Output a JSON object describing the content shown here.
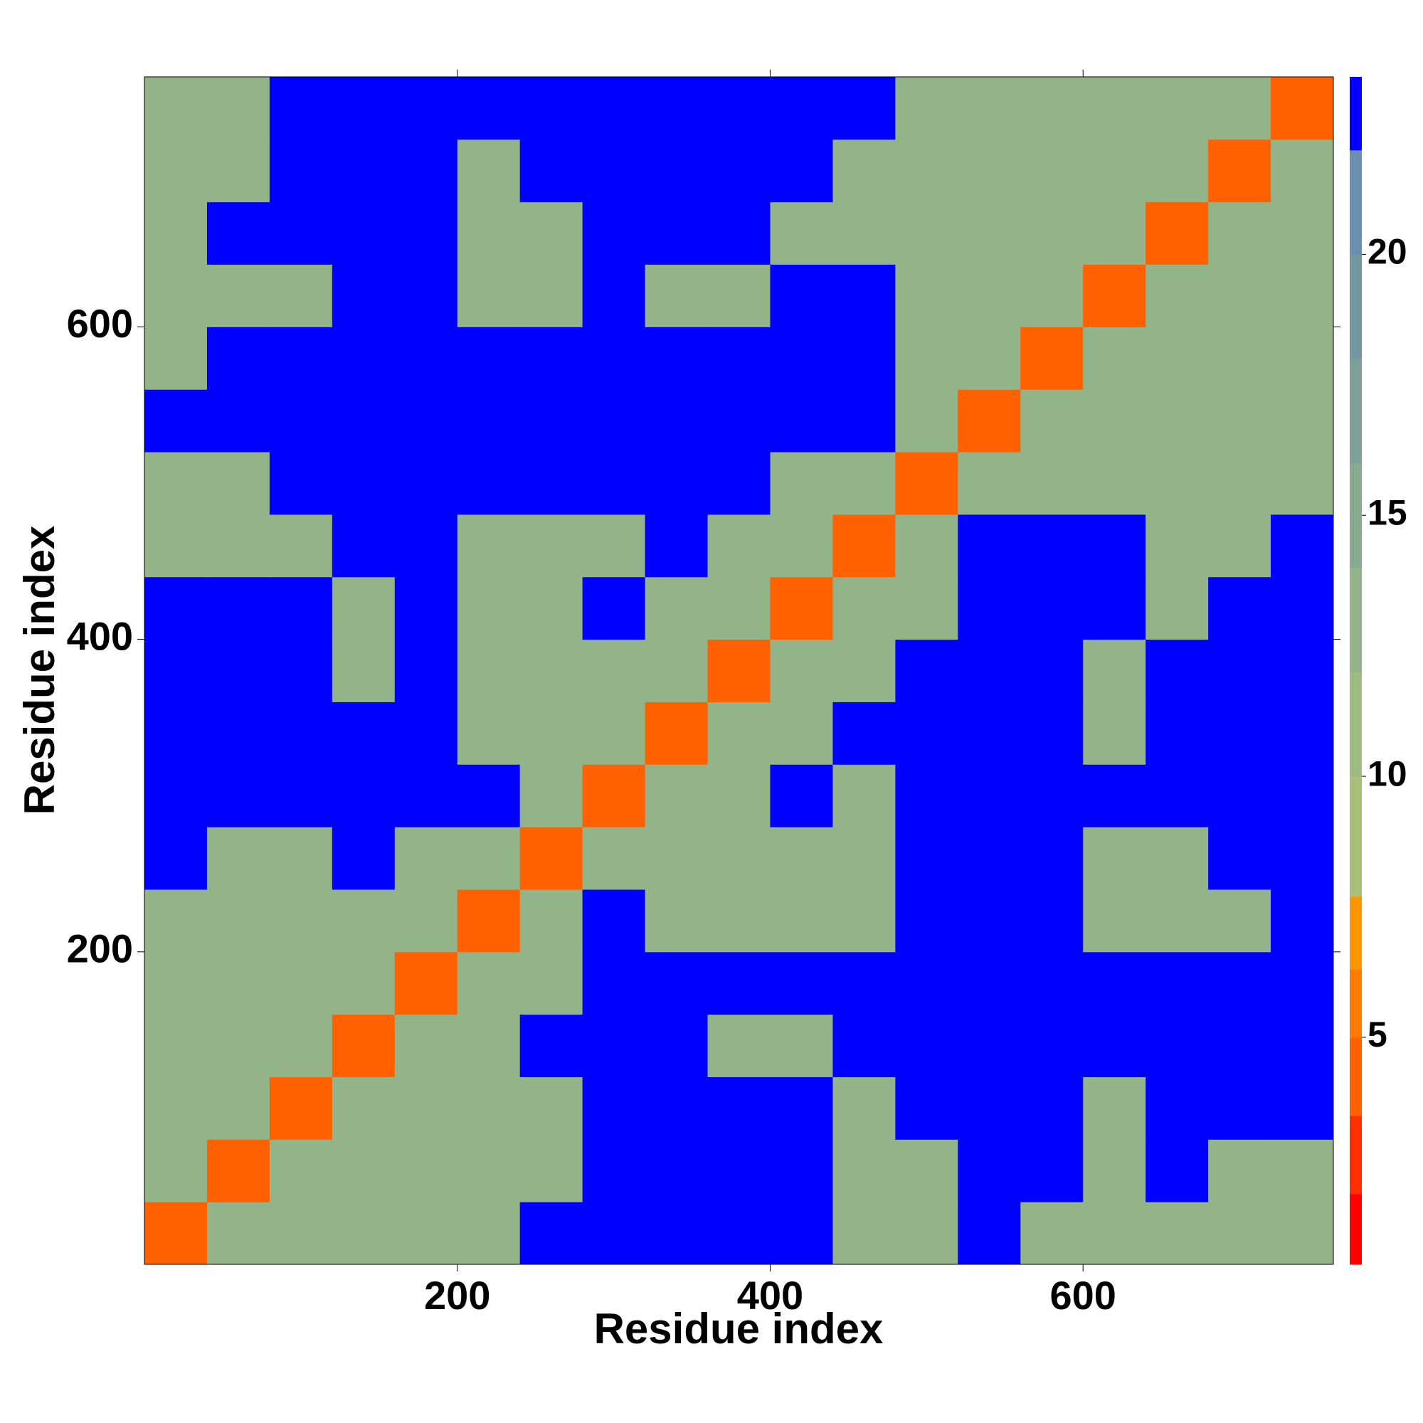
{
  "chart_data": {
    "type": "heatmap",
    "xlabel": "Residue index",
    "ylabel": "Residue index",
    "xlim": [
      0,
      760
    ],
    "ylim": [
      0,
      760
    ],
    "xticks": [
      200,
      400,
      600
    ],
    "yticks": [
      200,
      400,
      600
    ],
    "x_bins": [
      0,
      40,
      80,
      120,
      160,
      200,
      240,
      280,
      320,
      360,
      400,
      440,
      480,
      520,
      560,
      600,
      640,
      680,
      720,
      760
    ],
    "y_bins": [
      0,
      40,
      80,
      120,
      160,
      200,
      240,
      280,
      320,
      360,
      400,
      440,
      480,
      520,
      560,
      600,
      640,
      680,
      720,
      760
    ],
    "matrix": [
      [
        4,
        13,
        13,
        13,
        13,
        13,
        23,
        23,
        23,
        23,
        23,
        13,
        13,
        23,
        13,
        13,
        13,
        13,
        13
      ],
      [
        13,
        4,
        13,
        13,
        13,
        13,
        13,
        23,
        23,
        23,
        23,
        13,
        13,
        23,
        23,
        13,
        23,
        13,
        13
      ],
      [
        13,
        13,
        4,
        13,
        13,
        13,
        13,
        23,
        23,
        23,
        23,
        13,
        23,
        23,
        23,
        13,
        23,
        23,
        23
      ],
      [
        13,
        13,
        13,
        4,
        13,
        13,
        23,
        23,
        23,
        13,
        13,
        23,
        23,
        23,
        23,
        23,
        23,
        23,
        23
      ],
      [
        13,
        13,
        13,
        13,
        4,
        13,
        13,
        23,
        23,
        23,
        23,
        23,
        23,
        23,
        23,
        23,
        23,
        23,
        23
      ],
      [
        13,
        13,
        13,
        13,
        13,
        4,
        13,
        23,
        13,
        13,
        13,
        13,
        23,
        23,
        23,
        13,
        13,
        13,
        23
      ],
      [
        23,
        13,
        13,
        23,
        13,
        13,
        4,
        13,
        13,
        13,
        13,
        13,
        23,
        23,
        23,
        13,
        13,
        23,
        23
      ],
      [
        23,
        23,
        23,
        23,
        23,
        23,
        13,
        4,
        13,
        13,
        23,
        13,
        23,
        23,
        23,
        23,
        23,
        23,
        23
      ],
      [
        23,
        23,
        23,
        23,
        23,
        13,
        13,
        13,
        4,
        13,
        13,
        23,
        23,
        23,
        23,
        13,
        23,
        23,
        23
      ],
      [
        23,
        23,
        23,
        13,
        23,
        13,
        13,
        13,
        13,
        4,
        13,
        13,
        23,
        23,
        23,
        13,
        23,
        23,
        23
      ],
      [
        23,
        23,
        23,
        13,
        23,
        13,
        13,
        23,
        13,
        13,
        4,
        13,
        13,
        23,
        23,
        23,
        13,
        23,
        23
      ],
      [
        13,
        13,
        13,
        23,
        23,
        13,
        13,
        13,
        23,
        13,
        13,
        4,
        13,
        23,
        23,
        23,
        13,
        13,
        23
      ],
      [
        13,
        13,
        23,
        23,
        23,
        23,
        23,
        23,
        23,
        23,
        13,
        13,
        4,
        13,
        13,
        13,
        13,
        13,
        13
      ],
      [
        23,
        23,
        23,
        23,
        23,
        23,
        23,
        23,
        23,
        23,
        23,
        23,
        13,
        4,
        13,
        13,
        13,
        13,
        13
      ],
      [
        13,
        23,
        23,
        23,
        23,
        23,
        23,
        23,
        23,
        23,
        23,
        23,
        13,
        13,
        4,
        13,
        13,
        13,
        13
      ],
      [
        13,
        13,
        13,
        23,
        23,
        13,
        13,
        23,
        13,
        13,
        23,
        23,
        13,
        13,
        13,
        4,
        13,
        13,
        13
      ],
      [
        13,
        23,
        23,
        23,
        23,
        13,
        13,
        23,
        23,
        23,
        13,
        13,
        13,
        13,
        13,
        13,
        4,
        13,
        13
      ],
      [
        13,
        13,
        23,
        23,
        23,
        13,
        23,
        23,
        23,
        23,
        23,
        13,
        13,
        13,
        13,
        13,
        13,
        4,
        13
      ],
      [
        13,
        13,
        23,
        23,
        23,
        23,
        23,
        23,
        23,
        23,
        23,
        23,
        13,
        13,
        13,
        13,
        13,
        13,
        4
      ]
    ],
    "colorbar": {
      "lim": [
        0.65,
        23.4
      ],
      "ticks": [
        5,
        10,
        15,
        20
      ],
      "levels": [
        0.65,
        2,
        3.5,
        5,
        6.3,
        7.7,
        10,
        12,
        14,
        16,
        18,
        20,
        22,
        23.4
      ],
      "colors": [
        "#ff0000",
        "#ff3000",
        "#ff6000",
        "#ff7a00",
        "#ff9500",
        "#a8bf78",
        "#9ebb80",
        "#92b488",
        "#88ab90",
        "#7da098",
        "#7397a0",
        "#6a8fb0",
        "#0000ff"
      ]
    }
  }
}
